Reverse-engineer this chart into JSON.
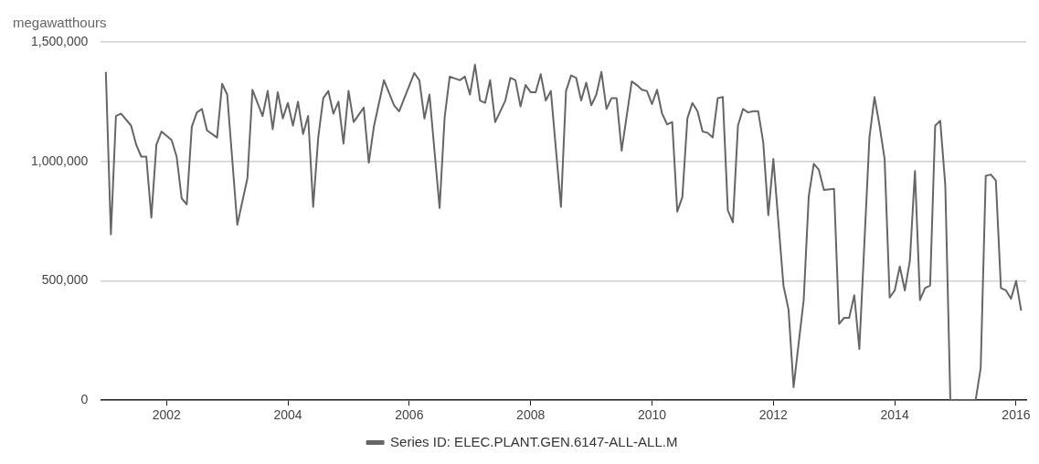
{
  "chart_data": {
    "type": "line",
    "ylabel": "megawatthours",
    "legend": "bottom",
    "grid": "y",
    "marker": "none",
    "line_style": "solid",
    "xlim": [
      "2000-12",
      "2016-03"
    ],
    "xticks": [
      "2002",
      "2004",
      "2006",
      "2008",
      "2010",
      "2012",
      "2014",
      "2016"
    ],
    "ylim": [
      0,
      1500000
    ],
    "yticks": [
      0,
      {
        "value": 500000,
        "label": "500,000"
      },
      {
        "value": 1000000,
        "label": "1,000,000"
      },
      {
        "value": 1500000,
        "label": "1,500,000"
      }
    ],
    "x": [
      "2001-01",
      "2001-02",
      "2001-03",
      "2001-04",
      "2001-06",
      "2001-07",
      "2001-08",
      "2001-09",
      "2001-10",
      "2001-11",
      "2001-12",
      "2002-02",
      "2002-03",
      "2002-04",
      "2002-05",
      "2002-06",
      "2002-07",
      "2002-08",
      "2002-09",
      "2002-11",
      "2002-12",
      "2003-01",
      "2003-03",
      "2003-05",
      "2003-06",
      "2003-08",
      "2003-09",
      "2003-10",
      "2003-11",
      "2003-12",
      "2004-01",
      "2004-02",
      "2004-03",
      "2004-04",
      "2004-05",
      "2004-06",
      "2004-07",
      "2004-08",
      "2004-09",
      "2004-10",
      "2004-11",
      "2004-12",
      "2005-01",
      "2005-02",
      "2005-04",
      "2005-05",
      "2005-06",
      "2005-08",
      "2005-10",
      "2005-11",
      "2006-02",
      "2006-03",
      "2006-04",
      "2006-05",
      "2006-07",
      "2006-08",
      "2006-09",
      "2006-11",
      "2006-12",
      "2007-01",
      "2007-02",
      "2007-03",
      "2007-04",
      "2007-05",
      "2007-06",
      "2007-08",
      "2007-09",
      "2007-10",
      "2007-11",
      "2007-12",
      "2008-01",
      "2008-02",
      "2008-03",
      "2008-04",
      "2008-05",
      "2008-07",
      "2008-08",
      "2008-09",
      "2008-10",
      "2008-11",
      "2008-12",
      "2009-01",
      "2009-02",
      "2009-03",
      "2009-04",
      "2009-05",
      "2009-06",
      "2009-07",
      "2009-09",
      "2009-10",
      "2009-11",
      "2009-12",
      "2010-01",
      "2010-02",
      "2010-03",
      "2010-04",
      "2010-05",
      "2010-06",
      "2010-07",
      "2010-08",
      "2010-09",
      "2010-10",
      "2010-11",
      "2010-12",
      "2011-01",
      "2011-02",
      "2011-03",
      "2011-04",
      "2011-05",
      "2011-06",
      "2011-07",
      "2011-08",
      "2011-09",
      "2011-10",
      "2011-11",
      "2011-12",
      "2012-01",
      "2012-03",
      "2012-04",
      "2012-05",
      "2012-07",
      "2012-08",
      "2012-09",
      "2012-10",
      "2012-11",
      "2013-01",
      "2013-02",
      "2013-03",
      "2013-04",
      "2013-05",
      "2013-06",
      "2013-08",
      "2013-09",
      "2013-10",
      "2013-11",
      "2013-12",
      "2014-01",
      "2014-02",
      "2014-03",
      "2014-04",
      "2014-05",
      "2014-06",
      "2014-07",
      "2014-08",
      "2014-09",
      "2014-10",
      "2014-11",
      "2014-12",
      "2015-05",
      "2015-06",
      "2015-07",
      "2015-08",
      "2015-09",
      "2015-10",
      "2015-11",
      "2015-12",
      "2016-01",
      "2016-02"
    ],
    "series": [
      {
        "name": "Series ID: ELEC.PLANT.GEN.6147-ALL-ALL.M",
        "color": "#666666",
        "values": [
          1375000,
          695000,
          1190000,
          1200000,
          1150000,
          1070000,
          1020000,
          1020000,
          765000,
          1070000,
          1125000,
          1090000,
          1020000,
          845000,
          820000,
          1145000,
          1205000,
          1220000,
          1130000,
          1100000,
          1325000,
          1280000,
          735000,
          930000,
          1300000,
          1190000,
          1295000,
          1135000,
          1290000,
          1180000,
          1245000,
          1150000,
          1250000,
          1115000,
          1190000,
          810000,
          1100000,
          1265000,
          1295000,
          1200000,
          1250000,
          1075000,
          1295000,
          1165000,
          1225000,
          995000,
          1145000,
          1340000,
          1235000,
          1210000,
          1370000,
          1340000,
          1180000,
          1280000,
          805000,
          1185000,
          1355000,
          1340000,
          1355000,
          1280000,
          1405000,
          1255000,
          1245000,
          1340000,
          1165000,
          1255000,
          1350000,
          1340000,
          1230000,
          1320000,
          1290000,
          1290000,
          1365000,
          1255000,
          1295000,
          810000,
          1295000,
          1360000,
          1350000,
          1255000,
          1330000,
          1235000,
          1280000,
          1375000,
          1220000,
          1265000,
          1265000,
          1045000,
          1335000,
          1320000,
          1300000,
          1295000,
          1240000,
          1300000,
          1200000,
          1155000,
          1165000,
          790000,
          850000,
          1180000,
          1245000,
          1210000,
          1125000,
          1120000,
          1100000,
          1265000,
          1270000,
          795000,
          745000,
          1150000,
          1220000,
          1205000,
          1210000,
          1210000,
          1080000,
          775000,
          1010000,
          480000,
          380000,
          55000,
          420000,
          855000,
          990000,
          965000,
          880000,
          885000,
          320000,
          345000,
          345000,
          440000,
          215000,
          1100000,
          1270000,
          1150000,
          1010000,
          430000,
          460000,
          560000,
          460000,
          585000,
          960000,
          420000,
          470000,
          480000,
          1150000,
          1170000,
          900000,
          0,
          0,
          135000,
          940000,
          945000,
          920000,
          470000,
          460000,
          425000,
          500000,
          375000
        ]
      }
    ]
  }
}
